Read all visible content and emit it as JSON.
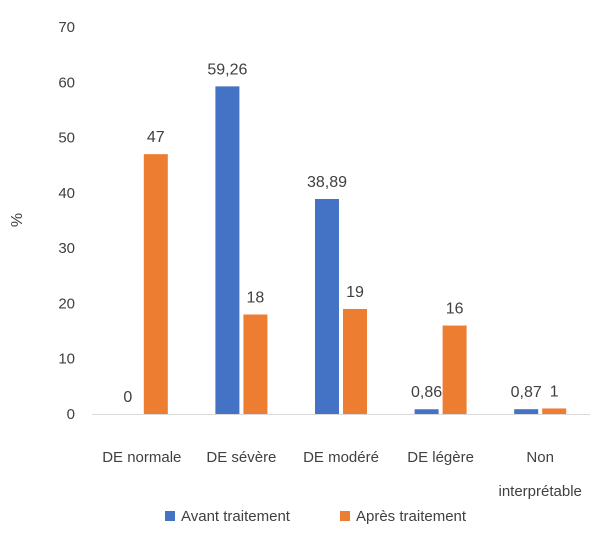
{
  "chart_data": {
    "type": "bar",
    "categories": [
      "DE normale",
      "DE sévère",
      "DE modéré",
      "DE légère",
      "Non interprétable"
    ],
    "series": [
      {
        "name": "Avant traitement",
        "color": "#4472C4",
        "values": [
          0,
          59.26,
          38.89,
          0.86,
          0.87
        ],
        "labels": [
          "0",
          "59,26",
          "38,89",
          "0,86",
          "0,87"
        ]
      },
      {
        "name": "Après traitement",
        "color": "#ED7D31",
        "values": [
          47,
          18,
          19,
          16,
          1
        ],
        "labels": [
          "47",
          "18",
          "19",
          "16",
          "1"
        ]
      }
    ],
    "title": "",
    "xlabel": "",
    "ylabel": "%",
    "ylim": [
      0,
      70
    ],
    "yticks": [
      "0",
      "10",
      "20",
      "30",
      "40",
      "50",
      "60",
      "70"
    ],
    "grid": false,
    "legend_position": "bottom"
  }
}
